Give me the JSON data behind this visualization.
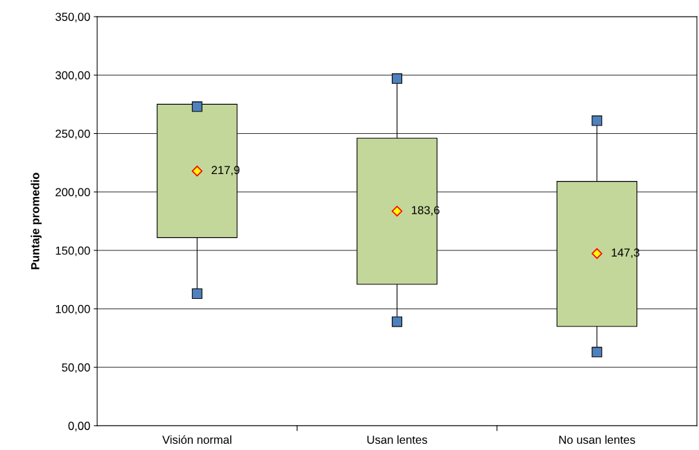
{
  "chart_data": {
    "type": "bar",
    "ylabel": "Puntaje promedio",
    "categories": [
      "Visión normal",
      "Usan lentes",
      "No usan lentes"
    ],
    "series": [
      {
        "color": "#c4d79b",
        "base": [
          161,
          121,
          85
        ],
        "values": [
          114,
          125,
          124
        ]
      },
      {
        "type": "scatter",
        "marker": "square",
        "color": "#4f81bd",
        "x": [
          "Visión normal",
          "Usan lentes",
          "No usan lentes"
        ],
        "values": [
          273,
          297,
          261
        ]
      },
      {
        "type": "scatter",
        "marker": "square",
        "color": "#4f81bd",
        "x": [
          "Visión normal",
          "Usan lentes",
          "No usan lentes"
        ],
        "values": [
          113,
          89,
          63
        ]
      },
      {
        "type": "scatter",
        "marker": "diamond",
        "color": "#ffff00",
        "x": [
          "Visión normal",
          "Usan lentes",
          "No usan lentes"
        ],
        "values": [
          217.9,
          183.6,
          147.3
        ],
        "value_labels": [
          "217,9",
          "183,6",
          "147,3"
        ]
      }
    ],
    "ylim": [
      0,
      350
    ],
    "yticks": [
      {
        "value": 0,
        "label": "0,00"
      },
      {
        "value": 50,
        "label": "50,00"
      },
      {
        "value": 100,
        "label": "100,00"
      },
      {
        "value": 150,
        "label": "150,00"
      },
      {
        "value": 200,
        "label": "200,00"
      },
      {
        "value": 250,
        "label": "250,00"
      },
      {
        "value": 300,
        "label": "300,00"
      },
      {
        "value": 350,
        "label": "350,00"
      }
    ],
    "grid": "y",
    "legend": false
  }
}
